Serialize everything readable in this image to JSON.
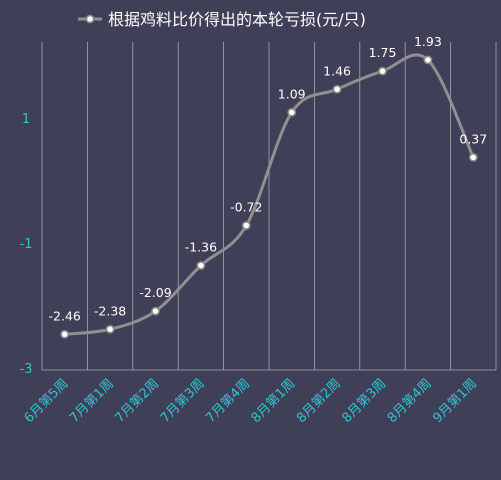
{
  "chart_data": {
    "type": "line",
    "title": "",
    "xlabel": "",
    "ylabel": "",
    "legend": {
      "position": "top",
      "entries": [
        "根据鸡料比价得出的本轮亏损(元/只)"
      ]
    },
    "categories": [
      "6月第5周",
      "7月第1周",
      "7月第2周",
      "7月第3周",
      "7月第4周",
      "8月第1周",
      "8月第2周",
      "8月第3周",
      "8月第4周",
      "9月第1周"
    ],
    "series": [
      {
        "name": "根据鸡料比价得出的本轮亏损(元/只)",
        "values": [
          -2.46,
          -2.38,
          -2.09,
          -1.36,
          -0.72,
          1.09,
          1.46,
          1.75,
          1.93,
          0.37
        ],
        "labels": [
          "-2.46",
          "-2.38",
          "-2.09",
          "-1.36",
          "-0.72",
          "1.09",
          "1.46",
          "1.75",
          "1.93",
          "0.37"
        ]
      }
    ],
    "y_ticks": [
      "1",
      "-1",
      "-3"
    ],
    "y_tick_values": [
      1,
      -1,
      -3
    ],
    "ylim": [
      -3,
      2
    ],
    "grid": "vertical",
    "smooth": true,
    "colors": {
      "background": "#3f3f57",
      "line": "#909090",
      "marker_fill": "#ffffff",
      "marker_stroke": "#8a8a8a",
      "grid": "#a8a8b4",
      "axis_text": "#2ec4d0",
      "label_text": "#ffffff"
    }
  }
}
